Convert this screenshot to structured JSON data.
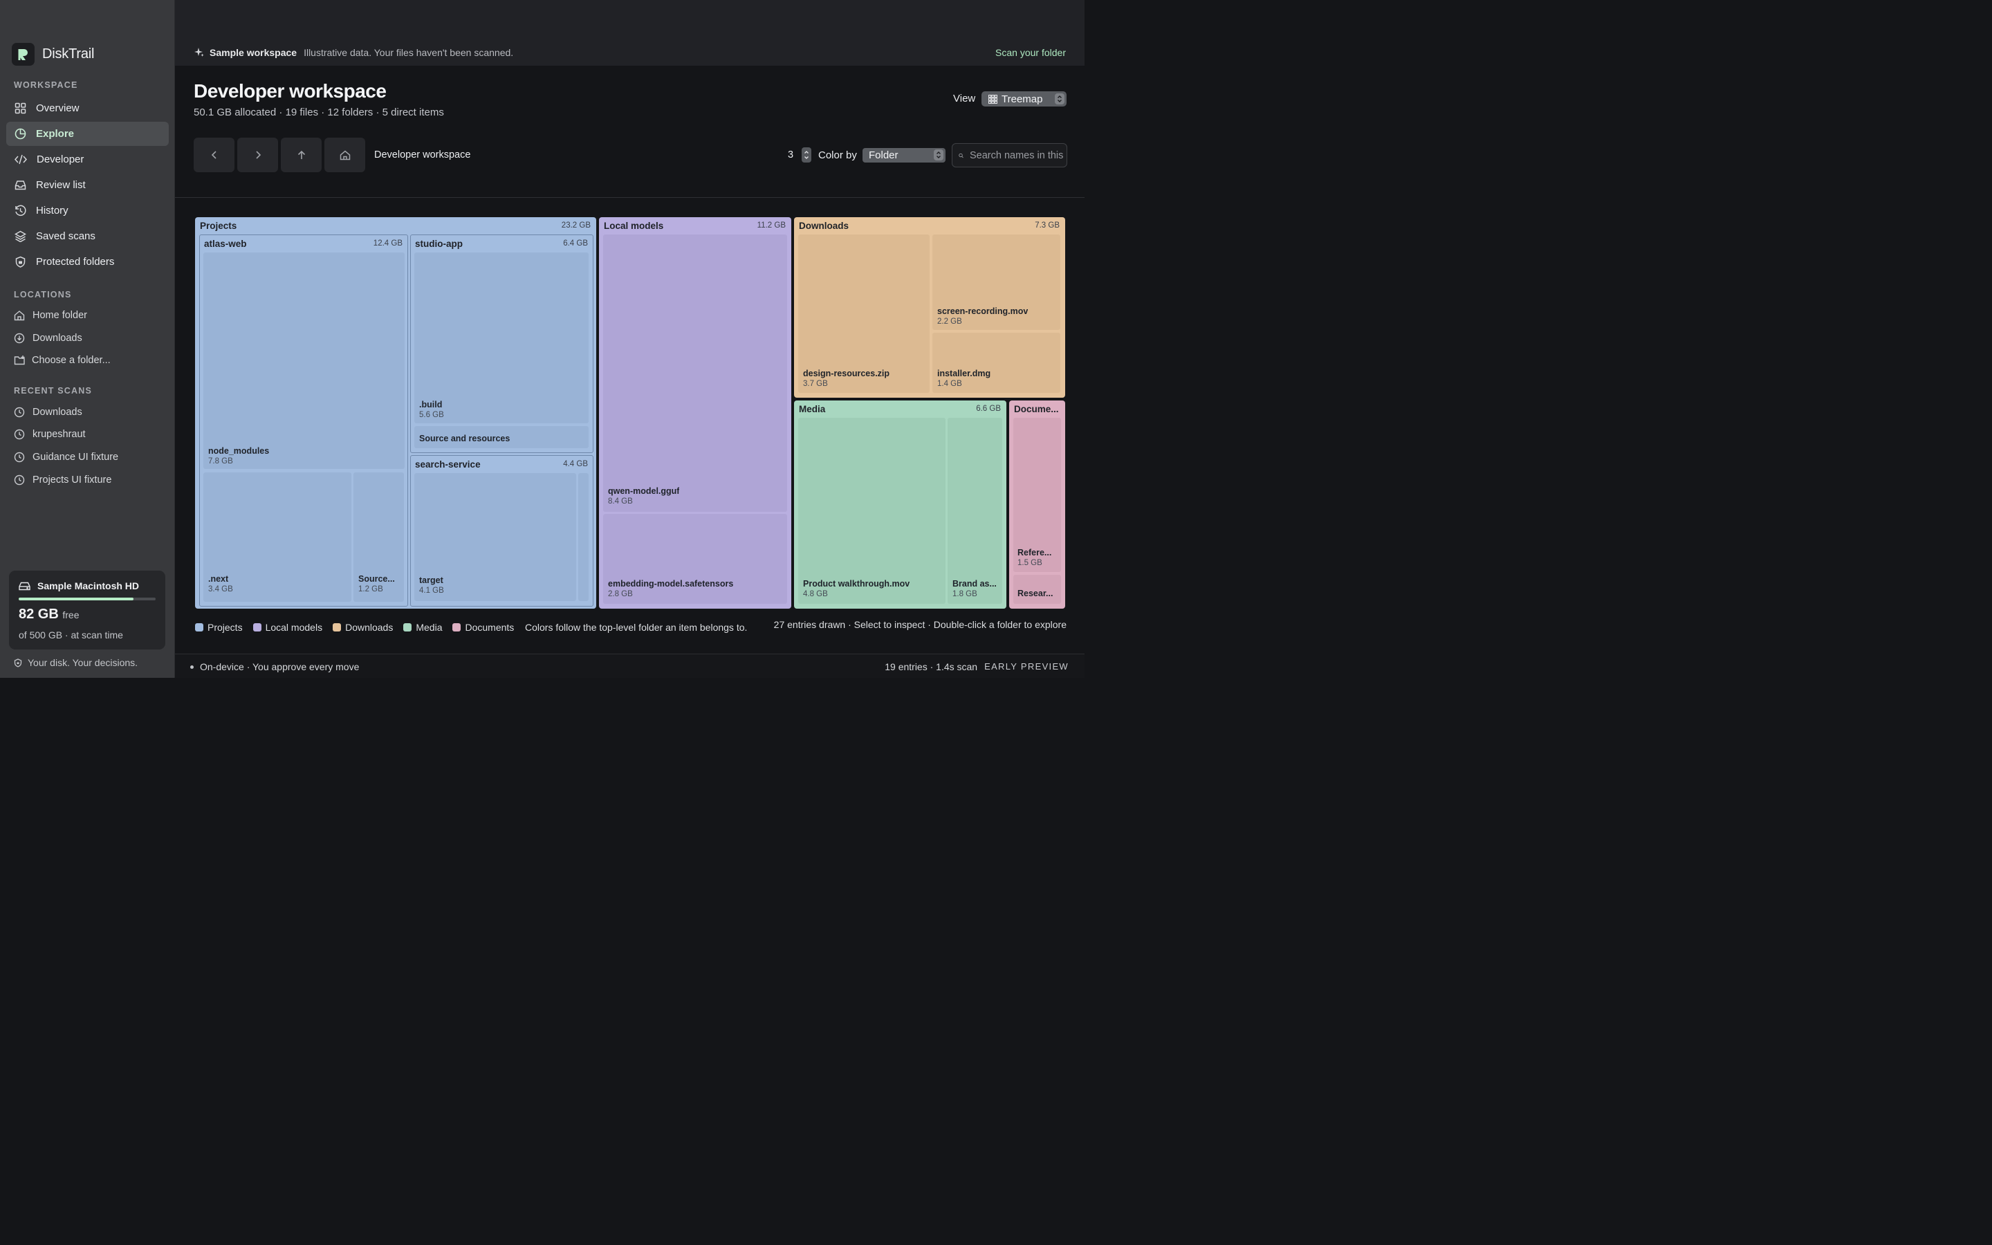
{
  "app": {
    "name": "DiskTrail"
  },
  "sidebar": {
    "workspace_label": "WORKSPACE",
    "nav": [
      {
        "label": "Overview",
        "icon": "grid-icon"
      },
      {
        "label": "Explore",
        "icon": "pie-chart-icon",
        "active": true
      },
      {
        "label": "Developer",
        "icon": "code-icon"
      },
      {
        "label": "Review list",
        "icon": "inbox-icon"
      },
      {
        "label": "History",
        "icon": "clock-icon"
      },
      {
        "label": "Saved scans",
        "icon": "layers-icon"
      },
      {
        "label": "Protected folders",
        "icon": "shield-icon"
      }
    ],
    "locations_label": "LOCATIONS",
    "locations": [
      {
        "label": "Home folder",
        "icon": "home-icon"
      },
      {
        "label": "Downloads",
        "icon": "download-icon"
      },
      {
        "label": "Choose a folder...",
        "icon": "folder-plus-icon"
      }
    ],
    "recent_label": "RECENT SCANS",
    "recent": [
      {
        "label": "Downloads"
      },
      {
        "label": "krupeshraut"
      },
      {
        "label": "Guidance UI fixture"
      },
      {
        "label": "Projects UI fixture"
      }
    ],
    "disk": {
      "name": "Sample Macintosh HD",
      "free": "82 GB",
      "free_word": "free",
      "sub": "of 500 GB · at scan time",
      "used_fraction": 0.836
    },
    "tagline": "Your disk. Your decisions."
  },
  "banner": {
    "title": "Sample workspace",
    "message": "Illustrative data. Your files haven't been scanned.",
    "action": "Scan your folder"
  },
  "header": {
    "title": "Developer workspace",
    "subtitle": "50.1 GB allocated · 19 files · 12 folders · 5 direct items",
    "view_label": "View",
    "view_value": "Treemap"
  },
  "toolbar": {
    "breadcrumb": "Developer workspace",
    "depth": "3",
    "color_by_label": "Color by",
    "color_by_value": "Folder",
    "search_placeholder": "Search names in this"
  },
  "colors": {
    "projects": "#a3bde0",
    "local_models": "#b9afe0",
    "downloads": "#e6c49c",
    "media": "#a8d7c0",
    "documents": "#ddafc2",
    "accent": "#aee8c0"
  },
  "treemap": {
    "projects": {
      "label": "Projects",
      "size": "23.2 GB",
      "atlas": {
        "label": "atlas-web",
        "size": "12.4 GB",
        "node_modules": {
          "name": "node_modules",
          "size": "7.8 GB"
        },
        "next": {
          "name": ".next",
          "size": "3.4 GB"
        },
        "source": {
          "name": "Source...",
          "size": "1.2 GB"
        }
      },
      "studio": {
        "label": "studio-app",
        "size": "6.4 GB",
        "build": {
          "name": ".build",
          "size": "5.6 GB"
        },
        "source": {
          "name": "Source and resources"
        }
      },
      "search": {
        "label": "search-service",
        "size": "4.4 GB",
        "target": {
          "name": "target",
          "size": "4.1 GB"
        }
      }
    },
    "models": {
      "label": "Local models",
      "size": "11.2 GB",
      "qwen": {
        "name": "qwen-model.gguf",
        "size": "8.4 GB"
      },
      "embed": {
        "name": "embedding-model.safetensors",
        "size": "2.8 GB"
      }
    },
    "downloads": {
      "label": "Downloads",
      "size": "7.3 GB",
      "design": {
        "name": "design-resources.zip",
        "size": "3.7 GB"
      },
      "rec": {
        "name": "screen-recording.mov",
        "size": "2.2 GB"
      },
      "dmg": {
        "name": "installer.dmg",
        "size": "1.4 GB"
      }
    },
    "media": {
      "label": "Media",
      "size": "6.6 GB",
      "walk": {
        "name": "Product walkthrough.mov",
        "size": "4.8 GB"
      },
      "brand": {
        "name": "Brand as...",
        "size": "1.8 GB"
      }
    },
    "documents": {
      "label": "Docume...",
      "ref": {
        "name": "Refere...",
        "size": "1.5 GB"
      },
      "res": {
        "name": "Resear..."
      }
    }
  },
  "legend": {
    "items": [
      "Projects",
      "Local models",
      "Downloads",
      "Media",
      "Documents"
    ],
    "note": "Colors follow the top-level folder an item belongs to.",
    "hint": "27 entries drawn · Select to inspect · Double-click a folder to explore"
  },
  "footer": {
    "left": "On-device · You approve every move",
    "right": "19 entries · 1.4s scan",
    "badge": "EARLY PREVIEW"
  }
}
